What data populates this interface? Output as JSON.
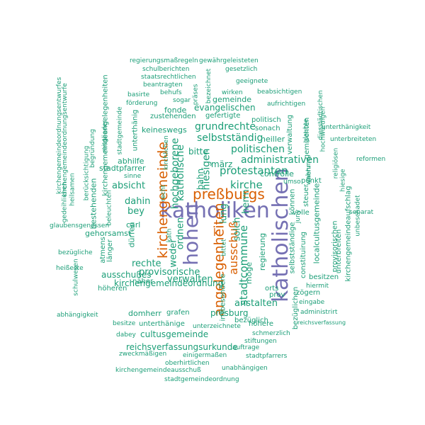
{
  "palette": {
    "purple": "#7570b3",
    "orange": "#d95f02",
    "teal": "#1b9e77"
  },
  "words": [
    "katholiken",
    "katholischen",
    "hohen",
    "kirchengemeinde",
    "angelegenheiten",
    "preßburgs",
    "kirche",
    "protestanten",
    "politischen",
    "administrativen",
    "ausschuß",
    "anstalten",
    "stadtcommune",
    "selbstständig",
    "grundrechte",
    "katholische",
    "hochgeborene",
    "hiesigen",
    "solch",
    "herrn",
    "lung",
    "k",
    "provisorische",
    "verwalten",
    "kirchengemeindeordnung",
    "presburg",
    "reichsverfassungsurkunde",
    "cultusgemeinde",
    "rechte",
    "absicht",
    "dahin",
    "bey",
    "gehorsamst",
    "ausschußes",
    "ordnen",
    "weder",
    "bahn",
    "bitte",
    "märz",
    "evangelischen",
    "gemeinde",
    "keineswegs",
    "zustehenden",
    "fonde",
    "gefertigte",
    "heiller",
    "sonach",
    "politisch",
    "controlle",
    "punkt",
    "localcultusgemeinde",
    "kirchengemeindeangelegenheiten",
    "unterthänige",
    "grafen",
    "domherr",
    "bezüglich",
    "insbesondere",
    "möge",
    "regierung",
    "bittet",
    "unterzeichnete",
    "unterbreiten",
    "selbstständige",
    "constituirung",
    "volle",
    "steuer",
    "können",
    "provisorischen",
    "besitzen",
    "hiermit",
    "zögern",
    "bezüglichen",
    "höhere",
    "orts",
    "prov",
    "eingabe",
    "unterthänig",
    "abhilfe",
    "stadtpfarrer",
    "bestehenden",
    "atmens",
    "länger",
    "dürfen",
    "näher",
    "höheren",
    "carl",
    "recht",
    "sinne",
    "kath",
    "verwaltung",
    "gemischten",
    "umso",
    "mehr",
    "glaubensgenossen",
    "bezügliche",
    "heißeste",
    "abhängigkeit",
    "besitze",
    "dabey",
    "zweckmäßigen",
    "einigermaßen",
    "oberhirtlichen",
    "kirchengemeindeausschuß",
    "unabhängigen",
    "stadtgemeindeordnung",
    "stadtpfarrers",
    "stiftungen",
    "auftrage",
    "schmerzlich",
    "reichsverfassung",
    "administrirt",
    "kirchengemeindeaufschlag",
    "unbeschadet",
    "separat",
    "hiesige",
    "reformen",
    "religiösen",
    "unterbreiteten",
    "unterthänigkeit",
    "hochwürdigen",
    "diesstädtischen",
    "glaubte",
    "wahrung",
    "juny",
    "regierungsmaßregeln",
    "gewährgeleisteten",
    "schulberichten",
    "gesetzlich",
    "staatsrechtlichen",
    "beantragten",
    "bezeichnet",
    "geeignete",
    "basirte",
    "behufs",
    "präses",
    "wirken",
    "beabsichtigen",
    "förderung",
    "sogar",
    "aufrichtigen",
    "stadtgemeinde",
    "begründung",
    "mitglieder",
    "berücksichtigung",
    "heilsamen",
    "gedeihlichen",
    "kirchengemeindeordnungsentwurfe",
    "kirchengemeindeordnungsentwurfes",
    "schulwesen",
    "beleuchten",
    "kirchlichen"
  ]
}
